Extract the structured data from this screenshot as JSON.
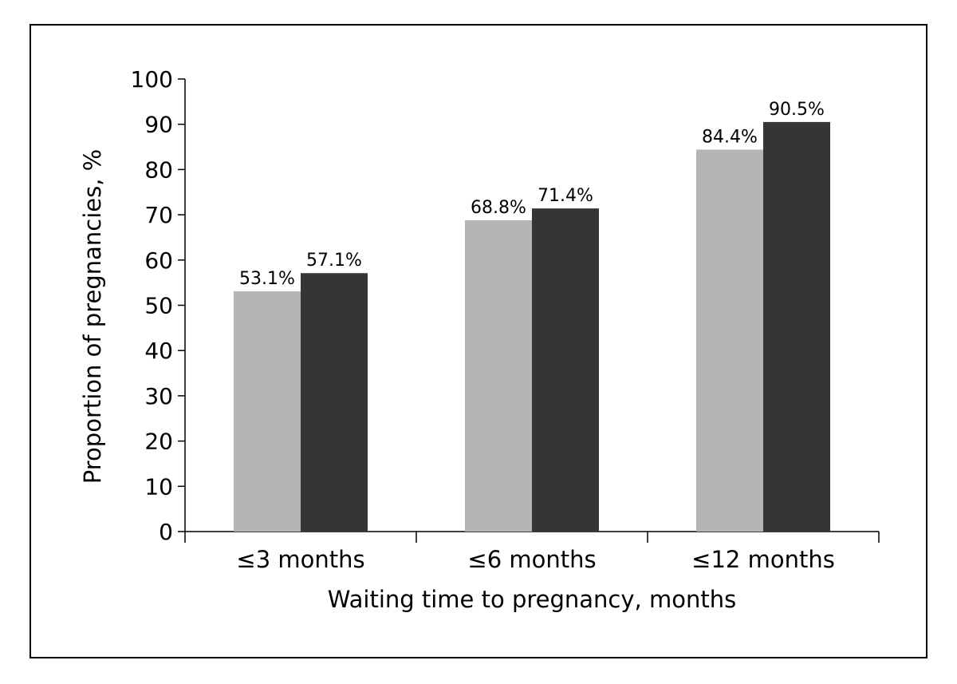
{
  "chart_data": {
    "type": "bar",
    "title": "",
    "xlabel": "Waiting time to pregnancy, months",
    "ylabel": "Proportion of pregnancies, %",
    "ylim": [
      0,
      100
    ],
    "yticks": [
      0,
      10,
      20,
      30,
      40,
      50,
      60,
      70,
      80,
      90,
      100
    ],
    "grid": false,
    "legend": "none",
    "categories": [
      "≤3 months",
      "≤6 months",
      "≤12 months"
    ],
    "series": [
      {
        "color": "#b5b5b5",
        "values": [
          53.1,
          68.8,
          84.4
        ],
        "labels": [
          "53.1%",
          "68.8%",
          "84.4%"
        ]
      },
      {
        "color": "#353535",
        "values": [
          57.1,
          71.4,
          90.5
        ],
        "labels": [
          "57.1%",
          "71.4%",
          "90.5%"
        ]
      }
    ]
  }
}
